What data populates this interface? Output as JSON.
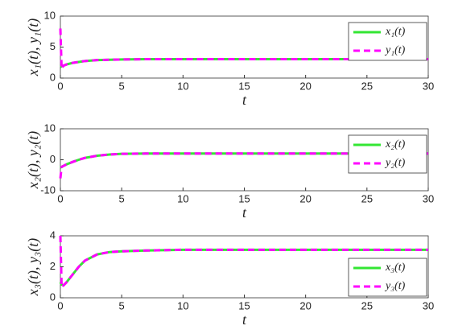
{
  "chart_data": [
    {
      "type": "line",
      "xlabel": "t",
      "ylabel": "x₁(t), y₁(t)",
      "x": [
        0,
        0.1,
        0.25,
        0.5,
        1,
        1.5,
        2,
        3,
        4,
        5,
        7,
        10,
        15,
        20,
        25,
        30
      ],
      "xlim": [
        0,
        30
      ],
      "xticks": [
        0,
        5,
        10,
        15,
        20,
        25,
        30
      ],
      "ylim": [
        0,
        10
      ],
      "yticks": [
        0,
        5,
        10
      ],
      "legend": "upper right",
      "series": [
        {
          "name": "x₁(t)",
          "color": "#33e633",
          "style": "solid",
          "values": [
            1.8,
            1.9,
            2.0,
            2.2,
            2.45,
            2.6,
            2.75,
            2.9,
            2.95,
            3.0,
            3.05,
            3.05,
            3.05,
            3.05,
            3.05,
            3.05
          ]
        },
        {
          "name": "y₁(t)",
          "color": "#ff00ff",
          "style": "dashed",
          "values": [
            8,
            1.5,
            2.0,
            2.2,
            2.45,
            2.6,
            2.75,
            2.9,
            2.95,
            3.0,
            3.05,
            3.05,
            3.05,
            3.05,
            3.05,
            3.05
          ]
        }
      ]
    },
    {
      "type": "line",
      "xlabel": "t",
      "ylabel": "x₂(t), y₂(t)",
      "x": [
        0,
        0.1,
        0.25,
        0.5,
        1,
        1.5,
        2,
        3,
        4,
        5,
        7,
        10,
        15,
        20,
        25,
        30
      ],
      "xlim": [
        0,
        30
      ],
      "xticks": [
        0,
        5,
        10,
        15,
        20,
        25,
        30
      ],
      "ylim": [
        -10,
        10
      ],
      "yticks": [
        -10,
        0,
        10
      ],
      "legend": "upper right",
      "series": [
        {
          "name": "x₂(t)",
          "color": "#33e633",
          "style": "solid",
          "values": [
            -2.5,
            -2.3,
            -2,
            -1.5,
            -0.7,
            0,
            0.6,
            1.3,
            1.7,
            1.9,
            2,
            2,
            2,
            2,
            2,
            2
          ]
        },
        {
          "name": "y₂(t)",
          "color": "#ff00ff",
          "style": "dashed",
          "values": [
            -6,
            -2.3,
            -2,
            -1.5,
            -0.7,
            0,
            0.6,
            1.3,
            1.7,
            1.9,
            2,
            2,
            2,
            2,
            2,
            2
          ]
        }
      ]
    },
    {
      "type": "line",
      "xlabel": "t",
      "ylabel": "x₃(t), y₃(t)",
      "x": [
        0,
        0.1,
        0.25,
        0.5,
        1,
        1.5,
        2,
        3,
        4,
        5,
        7,
        10,
        15,
        20,
        25,
        30
      ],
      "xlim": [
        0,
        30
      ],
      "xticks": [
        0,
        5,
        10,
        15,
        20,
        25,
        30
      ],
      "ylim": [
        0,
        4
      ],
      "yticks": [
        0,
        2,
        4
      ],
      "legend": "lower right",
      "series": [
        {
          "name": "x₃(t)",
          "color": "#33e633",
          "style": "solid",
          "values": [
            1.0,
            0.85,
            0.8,
            1.0,
            1.5,
            2.0,
            2.4,
            2.8,
            2.95,
            3.0,
            3.05,
            3.1,
            3.1,
            3.1,
            3.1,
            3.1
          ]
        },
        {
          "name": "y₃(t)",
          "color": "#ff00ff",
          "style": "dashed",
          "values": [
            4,
            0.7,
            0.8,
            1.0,
            1.5,
            2.0,
            2.4,
            2.8,
            2.95,
            3.0,
            3.05,
            3.1,
            3.1,
            3.1,
            3.1,
            3.1
          ]
        }
      ]
    }
  ]
}
